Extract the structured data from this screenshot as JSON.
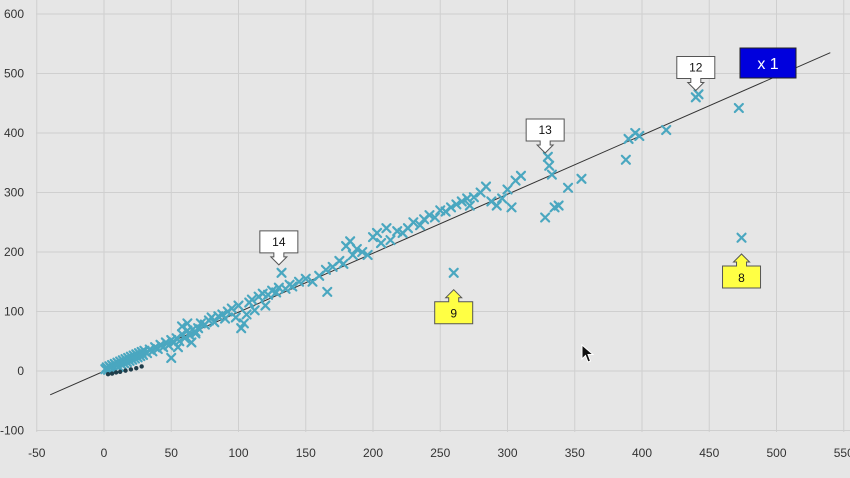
{
  "chart_data": {
    "type": "scatter",
    "title": "",
    "xlabel": "",
    "ylabel": "",
    "xlim": [
      -50,
      550
    ],
    "ylim": [
      -100,
      600
    ],
    "x_ticks": [
      "-50",
      "0",
      "50",
      "100",
      "150",
      "200",
      "250",
      "300",
      "350",
      "400",
      "450",
      "500",
      "550"
    ],
    "y_ticks": [
      "-100",
      "0",
      "100",
      "200",
      "300",
      "400",
      "500",
      "600"
    ],
    "grid": true,
    "marker_color": "#4aa7c0",
    "trend_line": {
      "x1": -40,
      "y1": -40,
      "x2": 540,
      "y2": 535
    },
    "points": [
      [
        1,
        3
      ],
      [
        2,
        6
      ],
      [
        3,
        2
      ],
      [
        4,
        8
      ],
      [
        5,
        5
      ],
      [
        6,
        10
      ],
      [
        7,
        4
      ],
      [
        8,
        12
      ],
      [
        9,
        9
      ],
      [
        10,
        14
      ],
      [
        11,
        7
      ],
      [
        12,
        16
      ],
      [
        13,
        11
      ],
      [
        14,
        18
      ],
      [
        15,
        13
      ],
      [
        16,
        20
      ],
      [
        17,
        15
      ],
      [
        18,
        22
      ],
      [
        19,
        17
      ],
      [
        20,
        24
      ],
      [
        21,
        19
      ],
      [
        22,
        26
      ],
      [
        23,
        21
      ],
      [
        24,
        28
      ],
      [
        25,
        23
      ],
      [
        26,
        30
      ],
      [
        27,
        25
      ],
      [
        28,
        32
      ],
      [
        29,
        27
      ],
      [
        30,
        34
      ],
      [
        32,
        30
      ],
      [
        34,
        36
      ],
      [
        36,
        33
      ],
      [
        38,
        40
      ],
      [
        40,
        37
      ],
      [
        42,
        44
      ],
      [
        44,
        40
      ],
      [
        46,
        48
      ],
      [
        48,
        43
      ],
      [
        50,
        52
      ],
      [
        52,
        48
      ],
      [
        54,
        55
      ],
      [
        56,
        50
      ],
      [
        58,
        62
      ],
      [
        60,
        55
      ],
      [
        62,
        68
      ],
      [
        64,
        60
      ],
      [
        66,
        70
      ],
      [
        68,
        63
      ],
      [
        70,
        72
      ],
      [
        50,
        22
      ],
      [
        55,
        40
      ],
      [
        58,
        75
      ],
      [
        62,
        80
      ],
      [
        65,
        48
      ],
      [
        68,
        66
      ],
      [
        72,
        80
      ],
      [
        75,
        78
      ],
      [
        78,
        85
      ],
      [
        80,
        90
      ],
      [
        82,
        82
      ],
      [
        85,
        92
      ],
      [
        88,
        95
      ],
      [
        90,
        88
      ],
      [
        92,
        100
      ],
      [
        95,
        105
      ],
      [
        98,
        90
      ],
      [
        100,
        110
      ],
      [
        102,
        72
      ],
      [
        104,
        80
      ],
      [
        106,
        95
      ],
      [
        108,
        115
      ],
      [
        110,
        120
      ],
      [
        112,
        102
      ],
      [
        115,
        125
      ],
      [
        118,
        130
      ],
      [
        120,
        110
      ],
      [
        122,
        128
      ],
      [
        125,
        135
      ],
      [
        128,
        132
      ],
      [
        130,
        140
      ],
      [
        132,
        165
      ],
      [
        135,
        138
      ],
      [
        138,
        145
      ],
      [
        140,
        142
      ],
      [
        145,
        150
      ],
      [
        150,
        155
      ],
      [
        155,
        150
      ],
      [
        160,
        160
      ],
      [
        165,
        170
      ],
      [
        166,
        133
      ],
      [
        170,
        175
      ],
      [
        175,
        185
      ],
      [
        178,
        180
      ],
      [
        180,
        210
      ],
      [
        183,
        218
      ],
      [
        185,
        195
      ],
      [
        188,
        205
      ],
      [
        192,
        200
      ],
      [
        196,
        195
      ],
      [
        200,
        225
      ],
      [
        203,
        232
      ],
      [
        206,
        215
      ],
      [
        210,
        240
      ],
      [
        213,
        220
      ],
      [
        218,
        235
      ],
      [
        222,
        232
      ],
      [
        226,
        240
      ],
      [
        230,
        250
      ],
      [
        235,
        245
      ],
      [
        238,
        255
      ],
      [
        242,
        262
      ],
      [
        246,
        258
      ],
      [
        250,
        270
      ],
      [
        254,
        268
      ],
      [
        258,
        275
      ],
      [
        260,
        165
      ],
      [
        262,
        280
      ],
      [
        266,
        285
      ],
      [
        270,
        290
      ],
      [
        272,
        278
      ],
      [
        275,
        292
      ],
      [
        280,
        300
      ],
      [
        284,
        310
      ],
      [
        288,
        285
      ],
      [
        292,
        278
      ],
      [
        296,
        290
      ],
      [
        300,
        305
      ],
      [
        303,
        275
      ],
      [
        306,
        320
      ],
      [
        310,
        328
      ],
      [
        328,
        258
      ],
      [
        330,
        360
      ],
      [
        331,
        345
      ],
      [
        333,
        330
      ],
      [
        335,
        275
      ],
      [
        338,
        278
      ],
      [
        345,
        308
      ],
      [
        355,
        323
      ],
      [
        388,
        355
      ],
      [
        390,
        390
      ],
      [
        395,
        400
      ],
      [
        398,
        395
      ],
      [
        418,
        405
      ],
      [
        440,
        460
      ],
      [
        442,
        465
      ],
      [
        472,
        442
      ],
      [
        474,
        224
      ]
    ],
    "annotations": [
      {
        "label": "14",
        "x": 130,
        "y": 175,
        "style": "white",
        "direction": "down"
      },
      {
        "label": "13",
        "x": 328,
        "y": 363,
        "style": "white",
        "direction": "down"
      },
      {
        "label": "12",
        "x": 440,
        "y": 468,
        "style": "white",
        "direction": "down"
      },
      {
        "label": "9",
        "x": 260,
        "y": 140,
        "style": "yellow",
        "direction": "up"
      },
      {
        "label": "8",
        "x": 474,
        "y": 200,
        "style": "yellow",
        "direction": "up"
      }
    ],
    "badge": {
      "text": "x 1",
      "color": "#0000dd"
    }
  }
}
